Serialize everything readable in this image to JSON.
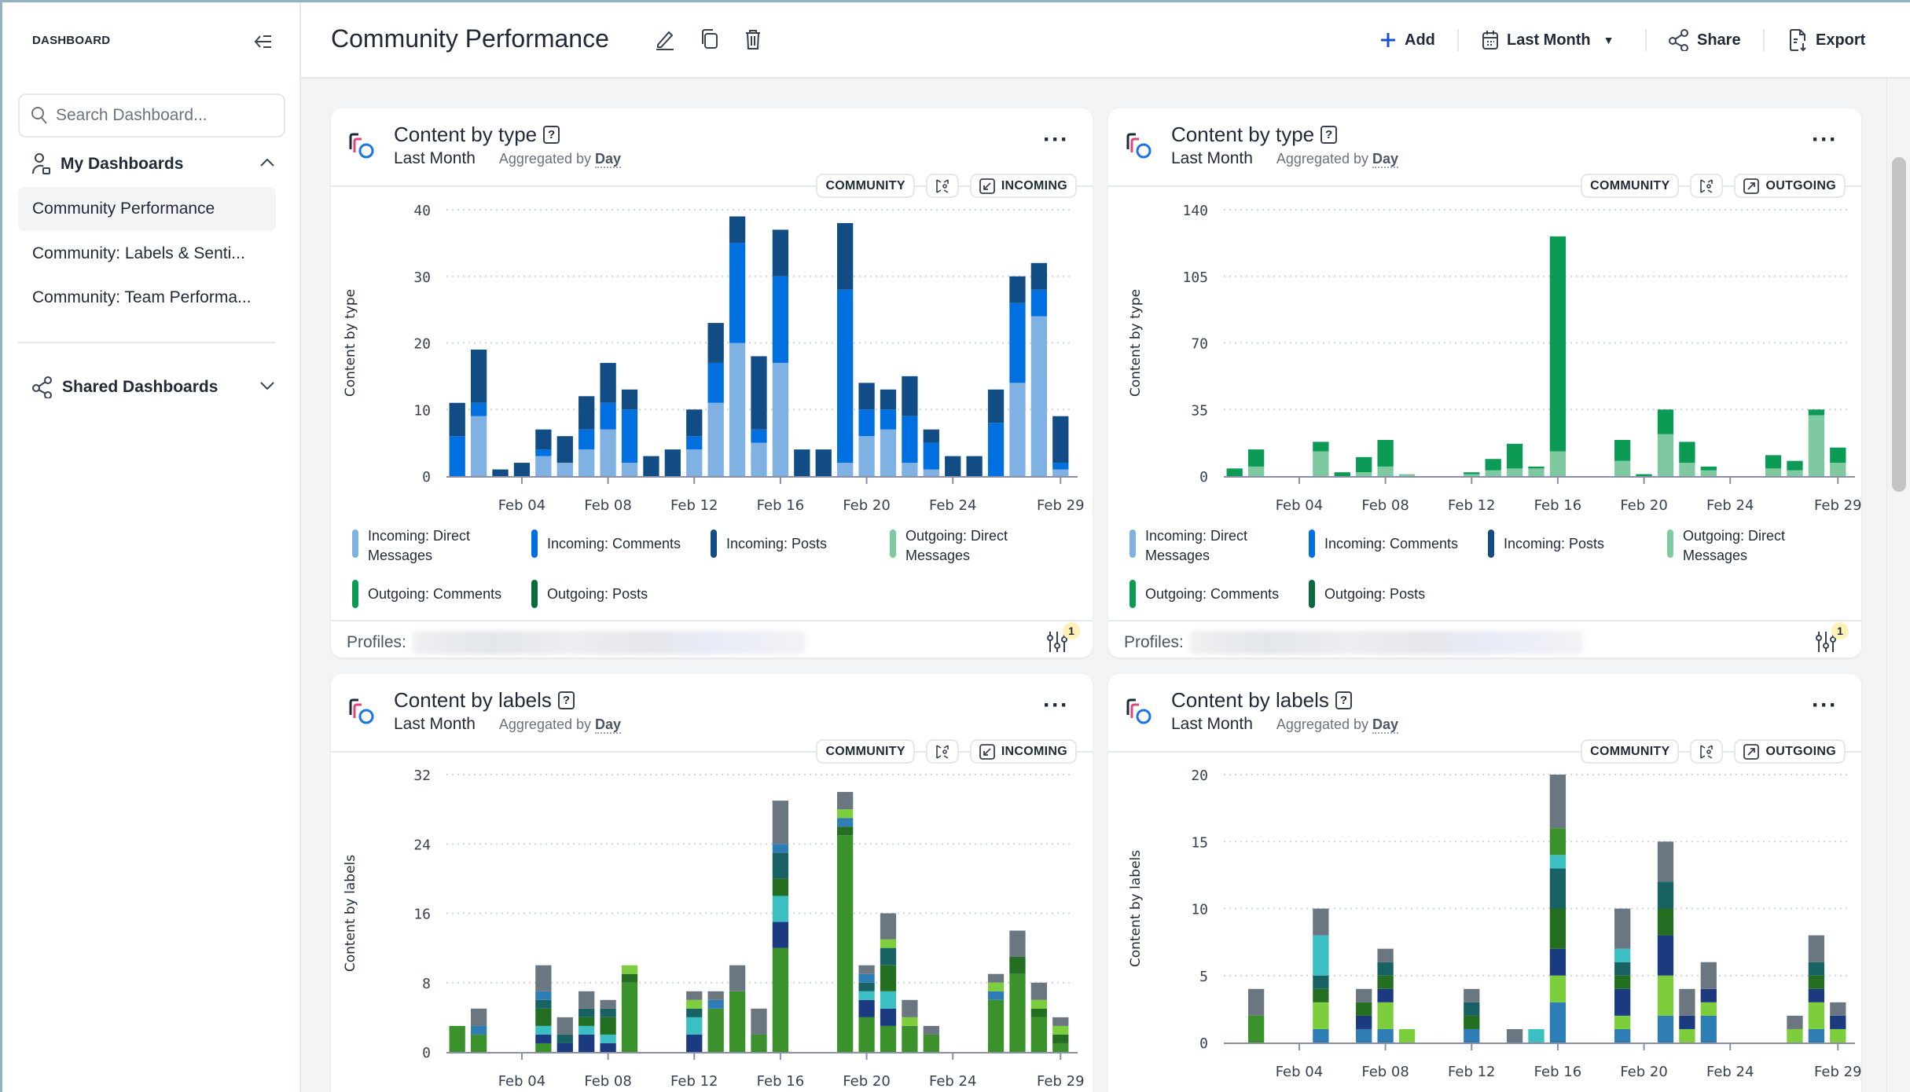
{
  "sidebar": {
    "title": "DASHBOARD",
    "search_placeholder": "Search Dashboard...",
    "my_dashboards": "My Dashboards",
    "items": [
      {
        "label": "Community Performance",
        "active": true
      },
      {
        "label": "Community: Labels & Senti..."
      },
      {
        "label": "Community: Team Performa..."
      }
    ],
    "shared_dashboards": "Shared Dashboards"
  },
  "header": {
    "title": "Community Performance",
    "add": "Add",
    "date_range": "Last Month",
    "share": "Share",
    "export": "Export"
  },
  "cards": [
    {
      "title": "Content by type",
      "period": "Last Month",
      "agg_prefix": "Aggregated by",
      "agg": "Day",
      "chip_scope": "COMMUNITY",
      "chip_direction": "INCOMING",
      "profiles_label": "Profiles:",
      "filter_count": "1"
    },
    {
      "title": "Content by type",
      "period": "Last Month",
      "agg_prefix": "Aggregated by",
      "agg": "Day",
      "chip_scope": "COMMUNITY",
      "chip_direction": "OUTGOING",
      "profiles_label": "Profiles:",
      "filter_count": "1"
    },
    {
      "title": "Content by labels",
      "period": "Last Month",
      "agg_prefix": "Aggregated by",
      "agg": "Day",
      "chip_scope": "COMMUNITY",
      "chip_direction": "INCOMING"
    },
    {
      "title": "Content by labels",
      "period": "Last Month",
      "agg_prefix": "Aggregated by",
      "agg": "Day",
      "chip_scope": "COMMUNITY",
      "chip_direction": "OUTGOING"
    }
  ],
  "chart_data": [
    {
      "type": "bar",
      "stacked": true,
      "ylabel": "Content by type",
      "ylim": [
        0,
        40
      ],
      "yticks": [
        0,
        10,
        20,
        30,
        40
      ],
      "grid": true,
      "x_ticks": [
        {
          "day": 4,
          "label": "Feb 04"
        },
        {
          "day": 8,
          "label": "Feb 08"
        },
        {
          "day": 12,
          "label": "Feb 12"
        },
        {
          "day": 16,
          "label": "Feb 16"
        },
        {
          "day": 20,
          "label": "Feb 20"
        },
        {
          "day": 24,
          "label": "Feb 24"
        },
        {
          "day": 29,
          "label": "Feb 29"
        }
      ],
      "legend": "bottom",
      "series": [
        {
          "name": "Incoming: Direct Messages",
          "color": "#7fb1e3",
          "values": [
            0,
            9,
            0,
            0,
            3,
            2,
            4,
            7,
            2,
            0,
            0,
            4,
            11,
            20,
            5,
            17,
            0,
            0,
            2,
            6,
            7,
            2,
            1,
            0,
            0,
            0,
            14,
            24,
            1
          ]
        },
        {
          "name": "Incoming: Comments",
          "color": "#0070e0",
          "values": [
            6,
            2,
            0,
            0,
            1,
            0,
            3,
            4,
            8,
            0,
            0,
            2,
            6,
            15,
            2,
            13,
            0,
            0,
            26,
            4,
            3,
            7,
            4,
            0,
            0,
            8,
            12,
            4,
            1
          ]
        },
        {
          "name": "Incoming: Posts",
          "color": "#124c84",
          "values": [
            5,
            8,
            1,
            2,
            3,
            4,
            5,
            6,
            3,
            3,
            4,
            4,
            6,
            4,
            11,
            7,
            4,
            4,
            10,
            4,
            3,
            6,
            2,
            3,
            3,
            5,
            4,
            4,
            7
          ]
        },
        {
          "name": "Outgoing: Direct Messages",
          "color": "#7ec9a0",
          "values": [
            0,
            0,
            0,
            0,
            0,
            0,
            0,
            0,
            0,
            0,
            0,
            0,
            0,
            0,
            0,
            0,
            0,
            0,
            0,
            0,
            0,
            0,
            0,
            0,
            0,
            0,
            0,
            0,
            0
          ]
        },
        {
          "name": "Outgoing: Comments",
          "color": "#0c9b55",
          "values": [
            0,
            0,
            0,
            0,
            0,
            0,
            0,
            0,
            0,
            0,
            0,
            0,
            0,
            0,
            0,
            0,
            0,
            0,
            0,
            0,
            0,
            0,
            0,
            0,
            0,
            0,
            0,
            0,
            0
          ]
        },
        {
          "name": "Outgoing: Posts",
          "color": "#0b6b3a",
          "values": [
            0,
            0,
            0,
            0,
            0,
            0,
            0,
            0,
            0,
            0,
            0,
            0,
            0,
            0,
            0,
            0,
            0,
            0,
            0,
            0,
            0,
            0,
            0,
            0,
            0,
            0,
            0,
            0,
            0
          ]
        }
      ]
    },
    {
      "type": "bar",
      "stacked": true,
      "ylabel": "Content by type",
      "ylim": [
        0,
        140
      ],
      "yticks": [
        0,
        35,
        70,
        105,
        140
      ],
      "grid": true,
      "x_ticks": [
        {
          "day": 4,
          "label": "Feb 04"
        },
        {
          "day": 8,
          "label": "Feb 08"
        },
        {
          "day": 12,
          "label": "Feb 12"
        },
        {
          "day": 16,
          "label": "Feb 16"
        },
        {
          "day": 20,
          "label": "Feb 20"
        },
        {
          "day": 24,
          "label": "Feb 24"
        },
        {
          "day": 29,
          "label": "Feb 29"
        }
      ],
      "legend": "bottom",
      "series": [
        {
          "name": "Incoming: Direct Messages",
          "color": "#7fb1e3",
          "values": [
            0,
            0,
            0,
            0,
            0,
            0,
            0,
            0,
            0,
            0,
            0,
            0,
            0,
            0,
            0,
            0,
            0,
            0,
            0,
            0,
            0,
            0,
            0,
            0,
            0,
            0,
            0,
            0,
            0
          ]
        },
        {
          "name": "Incoming: Comments",
          "color": "#0070e0",
          "values": [
            0,
            0,
            0,
            0,
            0,
            0,
            0,
            0,
            0,
            0,
            0,
            0,
            0,
            0,
            0,
            0,
            0,
            0,
            0,
            0,
            0,
            0,
            0,
            0,
            0,
            0,
            0,
            0,
            0
          ]
        },
        {
          "name": "Incoming: Posts",
          "color": "#124c84",
          "values": [
            0,
            0,
            0,
            0,
            0,
            0,
            0,
            0,
            0,
            0,
            0,
            0,
            0,
            0,
            0,
            0,
            0,
            0,
            0,
            0,
            0,
            0,
            0,
            0,
            0,
            0,
            0,
            0,
            0
          ]
        },
        {
          "name": "Outgoing: Direct Messages",
          "color": "#7ec9a0",
          "values": [
            0,
            5,
            0,
            0,
            13,
            0,
            2,
            5,
            1,
            0,
            0,
            1,
            3,
            4,
            4,
            13,
            0,
            0,
            8,
            0,
            22,
            7,
            3,
            0,
            0,
            4,
            3,
            32,
            7
          ]
        },
        {
          "name": "Outgoing: Comments",
          "color": "#0c9b55",
          "values": [
            4,
            9,
            0,
            0,
            5,
            2,
            8,
            14,
            0,
            0,
            0,
            1,
            6,
            13,
            1,
            113,
            0,
            0,
            11,
            1,
            13,
            11,
            2,
            0,
            0,
            7,
            5,
            3,
            8
          ]
        },
        {
          "name": "Outgoing: Posts",
          "color": "#0b6b3a",
          "values": [
            0,
            0,
            0,
            0,
            0,
            0,
            0,
            0,
            0,
            0,
            0,
            0,
            0,
            0,
            0,
            0,
            0,
            0,
            0,
            0,
            0,
            0,
            0,
            0,
            0,
            0,
            0,
            0,
            0
          ]
        }
      ]
    },
    {
      "type": "bar",
      "stacked": true,
      "ylabel": "Content by labels",
      "ylim": [
        0,
        32
      ],
      "yticks": [
        0,
        8,
        16,
        24,
        32
      ],
      "grid": true,
      "x_ticks": [
        {
          "day": 4,
          "label": "Feb 04"
        },
        {
          "day": 8,
          "label": "Feb 08"
        },
        {
          "day": 12,
          "label": "Feb 12"
        },
        {
          "day": 16,
          "label": "Feb 16"
        },
        {
          "day": 20,
          "label": "Feb 20"
        },
        {
          "day": 24,
          "label": "Feb 24"
        },
        {
          "day": 29,
          "label": "Feb 29"
        }
      ],
      "series": [
        {
          "color": "#3b912b",
          "values": [
            3,
            2,
            0,
            0,
            1,
            0,
            0,
            0,
            8,
            0,
            0,
            0,
            5,
            7,
            2,
            12,
            0,
            0,
            25,
            4,
            3,
            3,
            2,
            0,
            0,
            6,
            9,
            4,
            1
          ]
        },
        {
          "color": "#1c3a80",
          "values": [
            0,
            0,
            0,
            0,
            1,
            1,
            2,
            1,
            0,
            0,
            0,
            2,
            0,
            0,
            0,
            3,
            0,
            0,
            0,
            2,
            2,
            0,
            0,
            0,
            0,
            0,
            0,
            0,
            0
          ]
        },
        {
          "color": "#3bbfc2",
          "values": [
            0,
            0,
            0,
            0,
            1,
            0,
            1,
            1,
            0,
            0,
            0,
            2,
            0,
            0,
            0,
            3,
            0,
            0,
            0,
            1,
            2,
            0,
            0,
            0,
            0,
            0,
            0,
            0,
            0
          ]
        },
        {
          "color": "#246e22",
          "values": [
            0,
            0,
            0,
            0,
            2,
            0,
            1,
            2,
            1,
            0,
            0,
            0,
            0,
            0,
            0,
            2,
            0,
            0,
            1,
            0,
            3,
            0,
            0,
            0,
            0,
            0,
            2,
            1,
            1
          ]
        },
        {
          "color": "#196264",
          "values": [
            0,
            0,
            0,
            0,
            1,
            1,
            1,
            1,
            0,
            0,
            0,
            1,
            0,
            0,
            0,
            3,
            0,
            0,
            0,
            1,
            2,
            0,
            0,
            0,
            0,
            0,
            0,
            0,
            0
          ]
        },
        {
          "color": "#2f7db5",
          "values": [
            0,
            1,
            0,
            0,
            1,
            0,
            0,
            0,
            0,
            0,
            0,
            0,
            1,
            0,
            0,
            1,
            0,
            0,
            1,
            1,
            0,
            0,
            0,
            0,
            0,
            1,
            0,
            0,
            0
          ]
        },
        {
          "color": "#7dce3c",
          "values": [
            0,
            0,
            0,
            0,
            0,
            0,
            0,
            0,
            1,
            0,
            0,
            1,
            0,
            0,
            0,
            0,
            0,
            0,
            1,
            0,
            1,
            1,
            0,
            0,
            0,
            1,
            0,
            1,
            1
          ]
        },
        {
          "color": "#6b7780",
          "values": [
            0,
            2,
            0,
            0,
            3,
            2,
            2,
            1,
            0,
            0,
            0,
            1,
            1,
            3,
            3,
            5,
            0,
            0,
            2,
            1,
            3,
            2,
            1,
            0,
            0,
            1,
            3,
            2,
            1
          ]
        }
      ]
    },
    {
      "type": "bar",
      "stacked": true,
      "ylabel": "Content by labels",
      "ylim": [
        0,
        20
      ],
      "yticks": [
        0,
        5,
        10,
        15,
        20
      ],
      "grid": true,
      "x_ticks": [
        {
          "day": 4,
          "label": "Feb 04"
        },
        {
          "day": 8,
          "label": "Feb 08"
        },
        {
          "day": 12,
          "label": "Feb 12"
        },
        {
          "day": 16,
          "label": "Feb 16"
        },
        {
          "day": 20,
          "label": "Feb 20"
        },
        {
          "day": 24,
          "label": "Feb 24"
        },
        {
          "day": 29,
          "label": "Feb 29"
        }
      ],
      "series": [
        {
          "color": "#2f7db5",
          "values": [
            0,
            0,
            0,
            0,
            1,
            0,
            1,
            1,
            0,
            0,
            0,
            1,
            0,
            0,
            0,
            3,
            0,
            0,
            1,
            0,
            2,
            0,
            2,
            0,
            0,
            0,
            0,
            1,
            0
          ]
        },
        {
          "color": "#7dce3c",
          "values": [
            0,
            0,
            0,
            0,
            2,
            0,
            0,
            2,
            1,
            0,
            0,
            0,
            0,
            0,
            0,
            2,
            0,
            0,
            1,
            0,
            3,
            1,
            1,
            0,
            0,
            0,
            1,
            2,
            1
          ]
        },
        {
          "color": "#1c3a80",
          "values": [
            0,
            0,
            0,
            0,
            0,
            0,
            1,
            1,
            0,
            0,
            0,
            0,
            0,
            0,
            0,
            2,
            0,
            0,
            2,
            0,
            3,
            1,
            1,
            0,
            0,
            0,
            0,
            1,
            1
          ]
        },
        {
          "color": "#246e22",
          "values": [
            0,
            0,
            0,
            0,
            1,
            0,
            1,
            1,
            0,
            0,
            0,
            1,
            0,
            0,
            0,
            3,
            0,
            0,
            1,
            0,
            2,
            0,
            0,
            0,
            0,
            0,
            0,
            1,
            0
          ]
        },
        {
          "color": "#196264",
          "values": [
            0,
            0,
            0,
            0,
            1,
            0,
            0,
            1,
            0,
            0,
            0,
            1,
            0,
            0,
            0,
            3,
            0,
            0,
            1,
            0,
            2,
            0,
            0,
            0,
            0,
            0,
            0,
            1,
            0
          ]
        },
        {
          "color": "#3bbfc2",
          "values": [
            0,
            0,
            0,
            0,
            3,
            0,
            0,
            0,
            0,
            0,
            0,
            0,
            0,
            0,
            1,
            1,
            0,
            0,
            1,
            0,
            0,
            0,
            0,
            0,
            0,
            0,
            0,
            0,
            0
          ]
        },
        {
          "color": "#3b912b",
          "values": [
            0,
            2,
            0,
            0,
            0,
            0,
            0,
            0,
            0,
            0,
            0,
            0,
            0,
            0,
            0,
            2,
            0,
            0,
            0,
            0,
            0,
            0,
            0,
            0,
            0,
            0,
            0,
            0,
            0
          ]
        },
        {
          "color": "#6b7780",
          "values": [
            0,
            2,
            0,
            0,
            2,
            0,
            1,
            1,
            0,
            0,
            0,
            1,
            0,
            1,
            0,
            4,
            0,
            0,
            3,
            0,
            3,
            2,
            2,
            0,
            0,
            0,
            1,
            2,
            1
          ]
        }
      ]
    }
  ]
}
